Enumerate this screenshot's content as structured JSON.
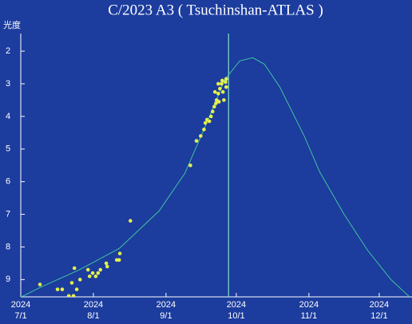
{
  "chart_data": {
    "type": "scatter",
    "title": "C/2023 A3 ( Tsuchinshan-ATLAS )",
    "y_label": "光度",
    "background": "#1c3c9e",
    "x": [
      8.2,
      15.7,
      17.7,
      20.5,
      21.8,
      22.5,
      22.9,
      23.9,
      25.3,
      28.7,
      29.4,
      30.7,
      32,
      33,
      34,
      36.5,
      36.9,
      41,
      42,
      42.3,
      46.8,
      72.4,
      75,
      76.8,
      78.2,
      78.8,
      79.5,
      80.5,
      81.2,
      81.9,
      82.6,
      82.9,
      83.3,
      83.6,
      84.3,
      84.3,
      84.6,
      85,
      85.7,
      86,
      86.3,
      86.7,
      87.4,
      87.7,
      87.7
    ],
    "values": [
      9.15,
      9.3,
      9.3,
      9.5,
      9.1,
      9.5,
      8.65,
      9.3,
      9.0,
      8.7,
      8.9,
      8.8,
      8.9,
      8.8,
      8.7,
      8.5,
      8.6,
      8.4,
      8.4,
      8.2,
      7.2,
      5.5,
      4.75,
      4.6,
      4.4,
      4.2,
      4.1,
      4.15,
      4.0,
      3.85,
      3.7,
      3.25,
      3.6,
      3.5,
      3.0,
      3.3,
      3.55,
      3.15,
      3.0,
      2.9,
      3.25,
      3.5,
      2.95,
      2.85,
      3.1
    ],
    "color": "#e6f04a",
    "model": {
      "x": [
        0,
        8,
        25,
        42,
        59,
        70,
        80,
        87,
        93.5,
        99,
        104,
        110.6,
        121,
        127.6,
        138,
        148,
        158,
        167
      ],
      "values": [
        9.54,
        9.25,
        8.7,
        8.05,
        6.9,
        5.75,
        4.1,
        2.88,
        2.3,
        2.2,
        2.4,
        3.1,
        4.6,
        5.7,
        7.0,
        8.1,
        9.0,
        9.6
      ],
      "color": "#3fc69a"
    },
    "perihelion_x": 88.7,
    "perihelion_color": "#7fe0c8",
    "xlim": [
      0,
      167
    ],
    "xticks": [
      {
        "value": 0,
        "label": "2024 7/1"
      },
      {
        "value": 31,
        "label": "2024 8/1"
      },
      {
        "value": 62,
        "label": "2024 9/1"
      },
      {
        "value": 92,
        "label": "2024 10/1"
      },
      {
        "value": 123,
        "label": "2024 11/1"
      },
      {
        "value": 153,
        "label": "2024 12/1"
      }
    ],
    "ylim": [
      9.53,
      1.46
    ],
    "yticks": [
      2,
      3,
      4,
      5,
      6,
      7,
      8,
      9
    ]
  }
}
